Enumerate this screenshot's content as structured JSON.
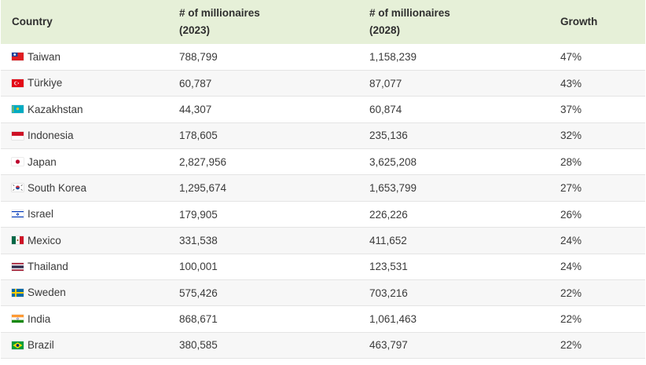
{
  "table": {
    "headers": {
      "country": "Country",
      "m2023_line1": "# of millionaires",
      "m2023_line2": "(2023)",
      "m2028_line1": "# of millionaires",
      "m2028_line2": "(2028)",
      "growth": "Growth"
    },
    "rows": [
      {
        "flag": "taiwan-flag-icon",
        "country": "Taiwan",
        "m2023": "788,799",
        "m2028": "1,158,239",
        "growth": "47%"
      },
      {
        "flag": "turkiye-flag-icon",
        "country": "Türkiye",
        "m2023": "60,787",
        "m2028": "87,077",
        "growth": "43%"
      },
      {
        "flag": "kazakhstan-flag-icon",
        "country": "Kazakhstan",
        "m2023": "44,307",
        "m2028": "60,874",
        "growth": "37%"
      },
      {
        "flag": "indonesia-flag-icon",
        "country": "Indonesia",
        "m2023": "178,605",
        "m2028": "235,136",
        "growth": "32%"
      },
      {
        "flag": "japan-flag-icon",
        "country": "Japan",
        "m2023": "2,827,956",
        "m2028": "3,625,208",
        "growth": "28%"
      },
      {
        "flag": "south-korea-flag-icon",
        "country": "South Korea",
        "m2023": "1,295,674",
        "m2028": "1,653,799",
        "growth": "27%"
      },
      {
        "flag": "israel-flag-icon",
        "country": "Israel",
        "m2023": "179,905",
        "m2028": "226,226",
        "growth": "26%"
      },
      {
        "flag": "mexico-flag-icon",
        "country": "Mexico",
        "m2023": "331,538",
        "m2028": "411,652",
        "growth": "24%"
      },
      {
        "flag": "thailand-flag-icon",
        "country": "Thailand",
        "m2023": "100,001",
        "m2028": "123,531",
        "growth": "24%"
      },
      {
        "flag": "sweden-flag-icon",
        "country": "Sweden",
        "m2023": "575,426",
        "m2028": "703,216",
        "growth": "22%"
      },
      {
        "flag": "india-flag-icon",
        "country": "India",
        "m2023": "868,671",
        "m2028": "1,061,463",
        "growth": "22%"
      },
      {
        "flag": "brazil-flag-icon",
        "country": "Brazil",
        "m2023": "380,585",
        "m2028": "463,797",
        "growth": "22%"
      }
    ]
  },
  "colors": {
    "header_bg": "#e6f0d8",
    "row_alt_bg": "#f7f7f7",
    "row_border": "#e4e4e4"
  }
}
